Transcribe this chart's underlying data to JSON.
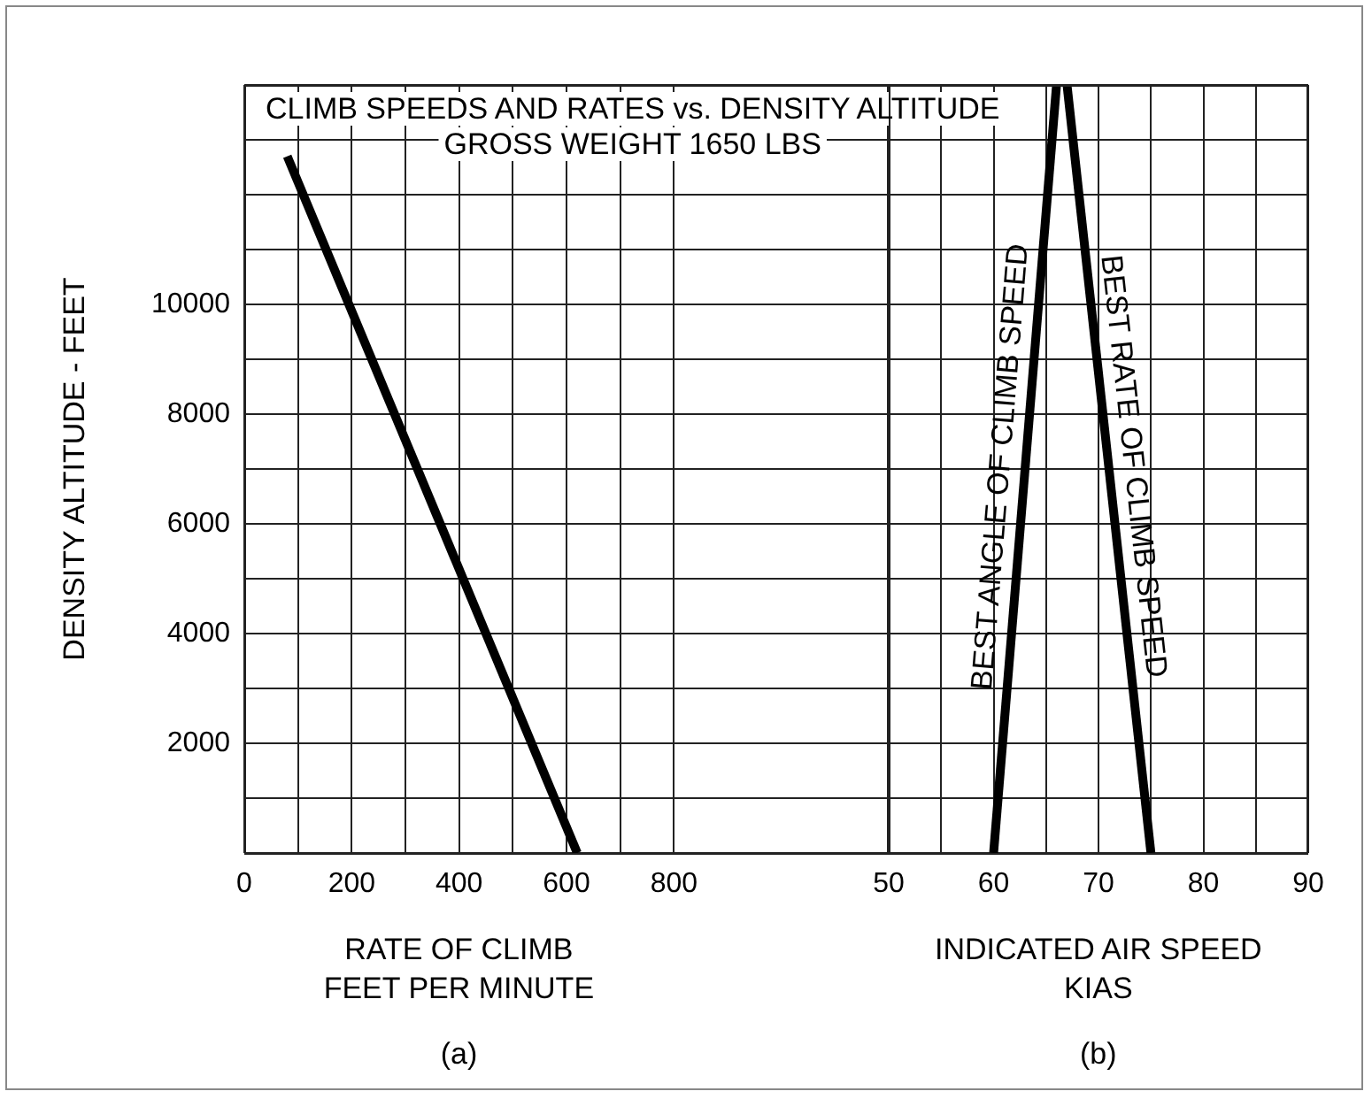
{
  "chart_data": [
    {
      "type": "line",
      "title": "CLIMB SPEEDS AND RATES vs. DENSITY ALTITUDE",
      "subtitle": "GROSS WEIGHT 1650 LBS",
      "xlabel": "RATE OF CLIMB\nFEET PER MINUTE",
      "ylabel": "DENSITY ALTITUDE - FEET",
      "annotations": [
        "(a)"
      ],
      "series": [
        {
          "color": "#000000",
          "x": [
            80,
            620
          ],
          "values": [
            12700,
            0
          ]
        }
      ],
      "xlim": [
        0,
        1200
      ],
      "xticks": [
        0,
        {
          "value": 100,
          "label": null
        },
        200,
        {
          "value": 300,
          "label": null
        },
        400,
        {
          "value": 500,
          "label": null
        },
        600,
        {
          "value": 700,
          "label": null
        },
        800
      ],
      "ylim": [
        0,
        14000
      ],
      "yticks": [
        {
          "value": 0,
          "label": null
        },
        {
          "value": 1000,
          "label": null
        },
        2000,
        {
          "value": 3000,
          "label": null
        },
        4000,
        {
          "value": 5000,
          "label": null
        },
        6000,
        {
          "value": 7000,
          "label": null
        },
        8000,
        {
          "value": 9000,
          "label": null
        },
        10000,
        {
          "value": 11000,
          "label": null
        },
        {
          "value": 12000,
          "label": null
        },
        {
          "value": 13000,
          "label": null
        },
        {
          "value": 14000,
          "label": null
        }
      ],
      "grid": true,
      "line_style": "solid"
    },
    {
      "type": "line",
      "xlabel": "INDICATED AIR SPEED\nKIAS",
      "annotations": [
        "(b)"
      ],
      "series": [
        {
          "name": "BEST ANGLE OF CLIMB SPEED",
          "color": "#000000",
          "x": [
            60,
            66
          ],
          "values": [
            0,
            14000
          ]
        },
        {
          "name": "BEST RATE OF CLIMB SPEED",
          "color": "#000000",
          "x": [
            75,
            67
          ],
          "values": [
            0,
            14000
          ]
        }
      ],
      "xlim": [
        50,
        90
      ],
      "xticks": [
        50,
        {
          "value": 55,
          "label": null
        },
        60,
        {
          "value": 65,
          "label": null
        },
        70,
        {
          "value": 75,
          "label": null
        },
        80,
        {
          "value": 85,
          "label": null
        },
        90
      ],
      "ylim": [
        0,
        14000
      ],
      "yticks": [
        {
          "value": 0,
          "label": null
        },
        {
          "value": 1000,
          "label": null
        },
        2000,
        {
          "value": 3000,
          "label": null
        },
        4000,
        {
          "value": 5000,
          "label": null
        },
        6000,
        {
          "value": 7000,
          "label": null
        },
        8000,
        {
          "value": 9000,
          "label": null
        },
        10000,
        {
          "value": 11000,
          "label": null
        },
        {
          "value": 12000,
          "label": null
        },
        {
          "value": 13000,
          "label": null
        },
        {
          "value": 14000,
          "label": null
        }
      ],
      "tick_labels": "x",
      "grid": true,
      "line_style": "solid"
    }
  ]
}
